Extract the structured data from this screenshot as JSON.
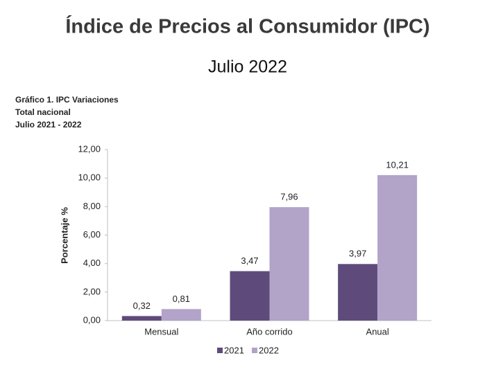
{
  "header": {
    "title": "Índice de Precios al Consumidor (IPC)",
    "subtitle": "Julio 2022"
  },
  "chart_data": {
    "type": "bar",
    "title": [
      "Gráfico 1. IPC Variaciones",
      "Total nacional",
      "Julio 2021 - 2022"
    ],
    "ylabel": "Porcentaje %",
    "categories": [
      "Mensual",
      "Año corrido",
      "Anual"
    ],
    "series": [
      {
        "name": "2021",
        "color": "#5f4b7b",
        "values": [
          0.32,
          3.47,
          3.97
        ],
        "value_labels": [
          "0,32",
          "3,47",
          "3,97"
        ]
      },
      {
        "name": "2022",
        "color": "#b2a3c9",
        "values": [
          0.81,
          7.96,
          10.21
        ],
        "value_labels": [
          "0,81",
          "7,96",
          "10,21"
        ]
      }
    ],
    "ylim": [
      0,
      12
    ],
    "yticks": [
      {
        "value": 0,
        "label": "0,00"
      },
      {
        "value": 2,
        "label": "2,00"
      },
      {
        "value": 4,
        "label": "4,00"
      },
      {
        "value": 6,
        "label": "6,00"
      },
      {
        "value": 8,
        "label": "8,00"
      },
      {
        "value": 10,
        "label": "10,00"
      },
      {
        "value": 12,
        "label": "12,00"
      }
    ],
    "legend": "bottom"
  }
}
